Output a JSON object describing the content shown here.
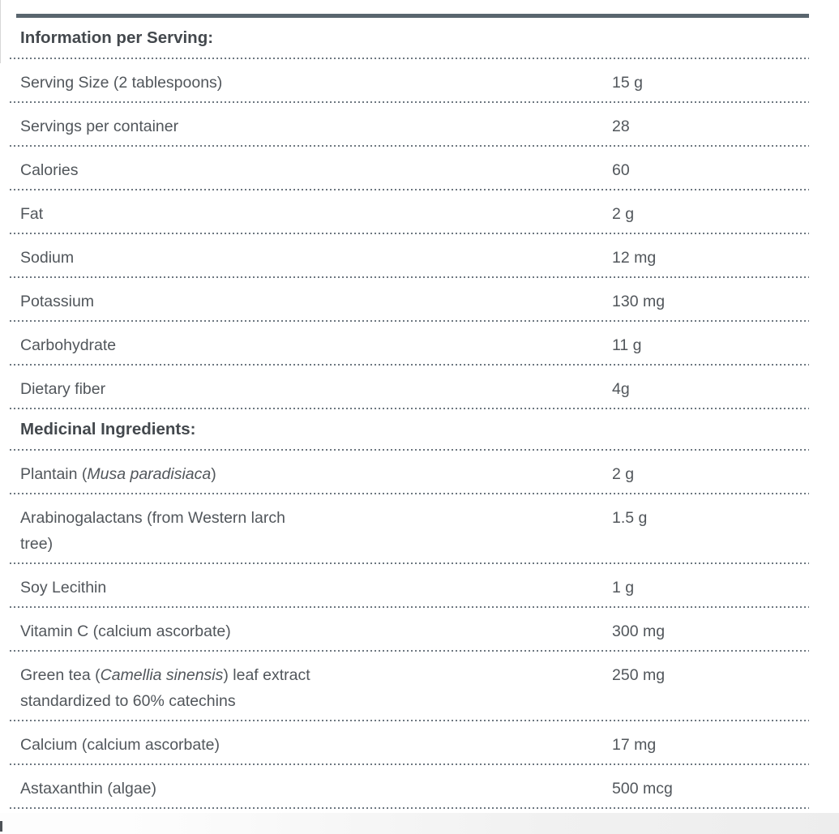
{
  "colors": {
    "accent_bar": "#59656e",
    "heading_text": "#43484d",
    "body_text": "#51565b",
    "separator_dots": "#6d7780"
  },
  "table": {
    "sections": [
      {
        "header": "Information per Serving:",
        "rows": [
          {
            "label_parts": [
              {
                "t": "Serving Size (2 tablespoons)"
              }
            ],
            "value": "15 g"
          },
          {
            "label_parts": [
              {
                "t": "Servings per container"
              }
            ],
            "value": "28"
          },
          {
            "label_parts": [
              {
                "t": "Calories"
              }
            ],
            "value": "60"
          },
          {
            "label_parts": [
              {
                "t": "Fat"
              }
            ],
            "value": "2 g"
          },
          {
            "label_parts": [
              {
                "t": "Sodium"
              }
            ],
            "value": "12 mg"
          },
          {
            "label_parts": [
              {
                "t": "Potassium"
              }
            ],
            "value": "130 mg"
          },
          {
            "label_parts": [
              {
                "t": "Carbohydrate"
              }
            ],
            "value": "11 g"
          },
          {
            "label_parts": [
              {
                "t": "Dietary fiber"
              }
            ],
            "value": "4g"
          }
        ]
      },
      {
        "header": "Medicinal Ingredients:",
        "rows": [
          {
            "label_parts": [
              {
                "t": "Plantain ("
              },
              {
                "t": "Musa paradisiaca",
                "italic": true
              },
              {
                "t": ")"
              }
            ],
            "value": "2 g"
          },
          {
            "label_parts": [
              {
                "t": "Arabinogalactans (from Western larch"
              },
              {
                "t": "tree)",
                "newline": true
              }
            ],
            "value": "1.5 g"
          },
          {
            "label_parts": [
              {
                "t": "Soy Lecithin"
              }
            ],
            "value": "1 g"
          },
          {
            "label_parts": [
              {
                "t": "Vitamin C (calcium ascorbate)"
              }
            ],
            "value": "300 mg"
          },
          {
            "label_parts": [
              {
                "t": "Green tea ("
              },
              {
                "t": "Camellia sinensis",
                "italic": true
              },
              {
                "t": ") leaf extract"
              },
              {
                "t": "standardized to 60% catechins",
                "newline": true
              }
            ],
            "value": "250 mg"
          },
          {
            "label_parts": [
              {
                "t": "Calcium (calcium ascorbate)"
              }
            ],
            "value": "17 mg"
          },
          {
            "label_parts": [
              {
                "t": "Astaxanthin (algae)"
              }
            ],
            "value": "500 mcg"
          }
        ]
      }
    ]
  }
}
